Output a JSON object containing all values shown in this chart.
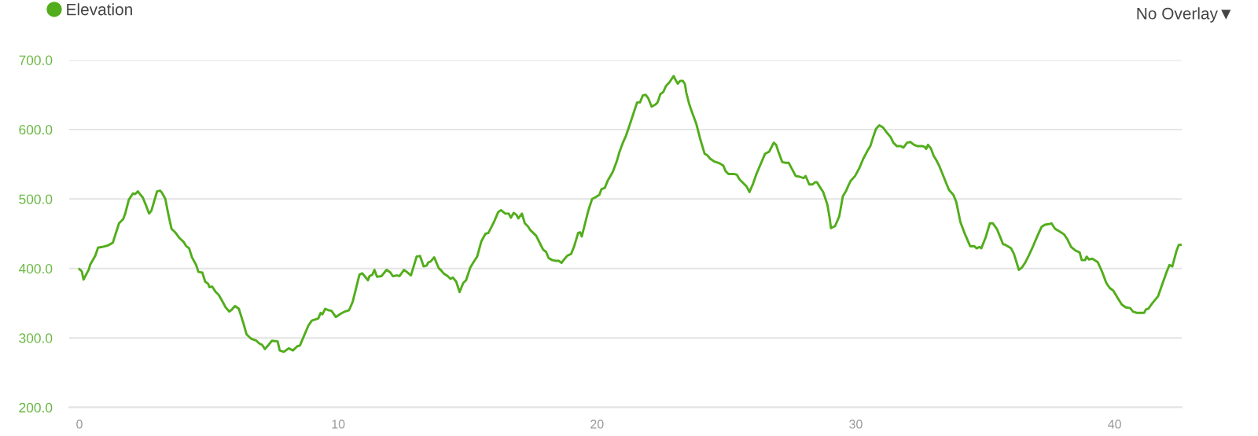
{
  "chart_data": {
    "type": "line",
    "xlim": [
      -0.4,
      42.6
    ],
    "xticks": [
      0,
      10,
      20,
      30,
      40
    ],
    "ylim": [
      200,
      700
    ],
    "yticks": [
      {
        "value": 200,
        "label": "200.0"
      },
      {
        "value": 300,
        "label": "300.0"
      },
      {
        "value": 400,
        "label": "400.0"
      },
      {
        "value": 500,
        "label": "500.0"
      },
      {
        "value": 600,
        "label": "600.0"
      },
      {
        "value": 700,
        "label": "700.0"
      }
    ],
    "grid": "y",
    "legend": "top left",
    "annotations": [
      "No Overlay▼"
    ],
    "series": [
      {
        "name": "Elevation",
        "color": "#52ad1c",
        "x": [
          0,
          0.09,
          0.16,
          0.37,
          0.41,
          0.61,
          0.72,
          0.88,
          1.1,
          1.24,
          1.29,
          1.53,
          1.69,
          1.77,
          1.91,
          2.07,
          2.15,
          2.26,
          2.34,
          2.45,
          2.56,
          2.69,
          2.78,
          3.0,
          3.12,
          3.19,
          3.32,
          3.43,
          3.56,
          3.7,
          3.86,
          4.03,
          4.13,
          4.24,
          4.35,
          4.51,
          4.6,
          4.75,
          4.86,
          4.97,
          5.03,
          5.13,
          5.25,
          5.38,
          5.49,
          5.65,
          5.79,
          5.87,
          6.01,
          6.16,
          6.33,
          6.46,
          6.63,
          6.84,
          6.95,
          7.06,
          7.17,
          7.31,
          7.44,
          7.66,
          7.74,
          7.9,
          8.09,
          8.25,
          8.42,
          8.52,
          8.69,
          8.85,
          8.98,
          9.23,
          9.32,
          9.39,
          9.5,
          9.61,
          9.74,
          9.91,
          10.1,
          10.26,
          10.42,
          10.56,
          10.82,
          10.93,
          11.02,
          11.15,
          11.21,
          11.32,
          11.4,
          11.5,
          11.67,
          11.87,
          12.02,
          12.11,
          12.27,
          12.37,
          12.54,
          12.65,
          12.81,
          13.03,
          13.16,
          13.3,
          13.41,
          13.49,
          13.57,
          13.71,
          13.89,
          13.96,
          14.07,
          14.23,
          14.34,
          14.43,
          14.56,
          14.69,
          14.83,
          14.94,
          15.1,
          15.26,
          15.37,
          15.53,
          15.69,
          15.8,
          15.91,
          16.02,
          16.18,
          16.29,
          16.45,
          16.59,
          16.67,
          16.78,
          16.89,
          16.96,
          17.1,
          17.21,
          17.32,
          17.43,
          17.65,
          17.81,
          17.92,
          18.03,
          18.13,
          18.27,
          18.41,
          18.52,
          18.63,
          18.73,
          18.84,
          19.0,
          19.11,
          19.27,
          19.35,
          19.41,
          19.54,
          19.67,
          19.81,
          19.92,
          20.09,
          20.17,
          20.3,
          20.41,
          20.61,
          20.76,
          20.87,
          21.01,
          21.12,
          21.23,
          21.39,
          21.55,
          21.66,
          21.77,
          21.88,
          21.98,
          22.11,
          22.26,
          22.34,
          22.45,
          22.56,
          22.67,
          22.8,
          22.89,
          22.96,
          23.04,
          23.12,
          23.21,
          23.32,
          23.4,
          23.45,
          23.56,
          23.67,
          23.83,
          23.99,
          24.16,
          24.26,
          24.37,
          24.53,
          24.7,
          24.88,
          24.97,
          25.08,
          25.29,
          25.4,
          25.51,
          25.67,
          25.78,
          25.89,
          26.03,
          26.16,
          26.32,
          26.49,
          26.65,
          26.72,
          26.83,
          26.92,
          27.01,
          27.16,
          27.3,
          27.41,
          27.55,
          27.68,
          27.84,
          27.98,
          28.06,
          28.12,
          28.2,
          28.33,
          28.42,
          28.5,
          28.6,
          28.74,
          28.9,
          28.98,
          29.04,
          29.2,
          29.36,
          29.5,
          29.63,
          29.72,
          29.8,
          29.97,
          30.13,
          30.29,
          30.46,
          30.56,
          30.67,
          30.78,
          30.91,
          31.05,
          31.21,
          31.35,
          31.45,
          31.59,
          31.74,
          31.84,
          31.98,
          32.11,
          32.25,
          32.39,
          32.58,
          32.66,
          32.72,
          32.79,
          32.9,
          33.01,
          33.11,
          33.22,
          33.33,
          33.47,
          33.6,
          33.77,
          33.88,
          34.04,
          34.2,
          34.42,
          34.58,
          34.67,
          34.78,
          34.85,
          35.02,
          35.18,
          35.29,
          35.45,
          35.56,
          35.69,
          35.78,
          36.0,
          36.11,
          36.21,
          36.3,
          36.41,
          36.54,
          36.69,
          36.86,
          37.02,
          37.18,
          37.31,
          37.49,
          37.56,
          37.7,
          37.88,
          38.05,
          38.16,
          38.32,
          38.48,
          38.65,
          38.73,
          38.86,
          38.92,
          39.01,
          39.14,
          39.35,
          39.52,
          39.68,
          39.81,
          39.95,
          40.11,
          40.28,
          40.43,
          40.6,
          40.71,
          40.87,
          41.14,
          41.21,
          41.3,
          41.46,
          41.68,
          41.84,
          42.01,
          42.12,
          42.23,
          42.39,
          42.48,
          42.55
        ],
        "values": [
          399,
          396,
          384,
          399,
          405,
          418,
          430,
          431,
          433,
          436,
          437,
          465,
          471,
          479,
          499,
          508,
          507,
          511,
          507,
          502,
          492,
          479,
          483,
          511,
          512,
          509,
          500,
          479,
          457,
          452,
          444,
          438,
          432,
          429,
          416,
          405,
          395,
          394,
          381,
          378,
          373,
          374,
          367,
          362,
          355,
          344,
          338,
          340,
          346,
          342,
          322,
          305,
          299,
          296,
          292,
          290,
          284,
          290,
          296,
          295,
          282,
          280,
          285,
          282,
          288,
          289,
          304,
          318,
          325,
          328,
          336,
          334,
          342,
          340,
          339,
          330,
          335,
          338,
          340,
          352,
          391,
          393,
          389,
          383,
          389,
          391,
          398,
          388,
          389,
          398,
          394,
          389,
          390,
          389,
          398,
          395,
          390,
          417,
          418,
          403,
          404,
          409,
          410,
          416,
          400,
          398,
          393,
          389,
          385,
          387,
          381,
          366,
          379,
          383,
          401,
          411,
          417,
          439,
          450,
          451,
          459,
          467,
          481,
          484,
          479,
          479,
          473,
          480,
          477,
          472,
          479,
          465,
          461,
          455,
          447,
          435,
          427,
          424,
          415,
          412,
          411,
          411,
          408,
          413,
          418,
          421,
          431,
          451,
          452,
          446,
          465,
          484,
          500,
          502,
          506,
          514,
          516,
          526,
          539,
          554,
          568,
          582,
          591,
          603,
          621,
          639,
          639,
          649,
          650,
          645,
          633,
          636,
          639,
          651,
          654,
          663,
          668,
          673,
          677,
          671,
          666,
          670,
          670,
          665,
          653,
          637,
          625,
          609,
          586,
          565,
          563,
          558,
          554,
          552,
          548,
          540,
          536,
          536,
          535,
          528,
          522,
          518,
          510,
          522,
          536,
          550,
          565,
          568,
          573,
          581,
          578,
          568,
          553,
          552,
          552,
          542,
          533,
          532,
          530,
          533,
          528,
          521,
          521,
          524,
          524,
          518,
          510,
          492,
          475,
          458,
          461,
          475,
          504,
          512,
          520,
          526,
          533,
          544,
          558,
          570,
          576,
          589,
          601,
          606,
          603,
          595,
          589,
          581,
          576,
          576,
          574,
          581,
          582,
          578,
          576,
          576,
          575,
          572,
          578,
          573,
          562,
          556,
          548,
          538,
          525,
          513,
          506,
          496,
          467,
          451,
          432,
          432,
          429,
          431,
          429,
          445,
          465,
          465,
          457,
          447,
          435,
          434,
          429,
          421,
          409,
          398,
          401,
          408,
          419,
          433,
          447,
          460,
          463,
          464,
          465,
          457,
          453,
          449,
          443,
          431,
          426,
          423,
          412,
          412,
          417,
          413,
          414,
          409,
          395,
          379,
          372,
          368,
          358,
          348,
          344,
          343,
          338,
          336,
          336,
          341,
          342,
          350,
          360,
          377,
          395,
          405,
          403,
          425,
          434,
          434
        ]
      }
    ]
  }
}
